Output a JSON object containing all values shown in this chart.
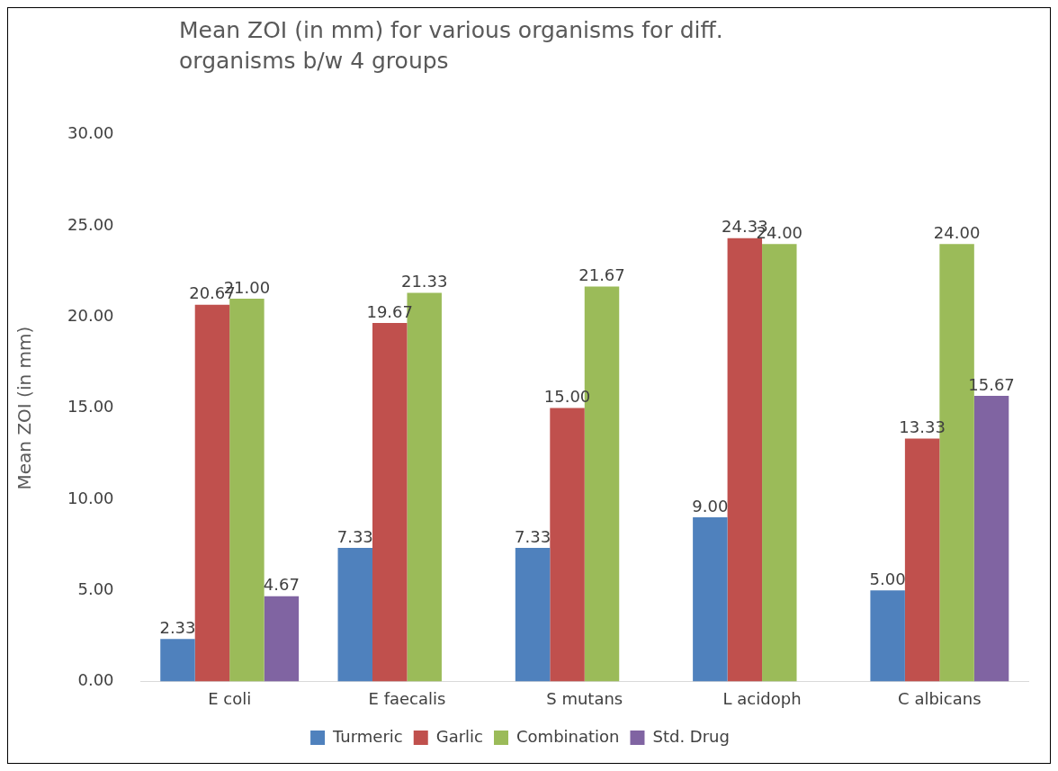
{
  "chart_data": {
    "type": "bar",
    "title": "Mean ZOI (in mm) for various organisms for diff. organisms b/w 4 groups",
    "ylabel": "Mean ZOI (in mm)",
    "categories": [
      "E coli",
      "E faecalis",
      "S mutans",
      "L acidoph",
      "C albicans"
    ],
    "series": [
      {
        "name": "Turmeric",
        "color": "#4f81bd",
        "values": [
          2.33,
          7.33,
          7.33,
          9.0,
          5.0
        ],
        "value_labels": [
          "2.33",
          "7.33",
          "7.33",
          "9.00",
          "5.00"
        ]
      },
      {
        "name": "Garlic",
        "color": "#c0504d",
        "values": [
          20.67,
          19.67,
          15.0,
          24.33,
          13.33
        ],
        "value_labels": [
          "20.67",
          "19.67",
          "15.00",
          "24.33",
          "13.33"
        ]
      },
      {
        "name": "Combination",
        "color": "#9bbb59",
        "values": [
          21.0,
          21.33,
          21.67,
          24.0,
          24.0
        ],
        "value_labels": [
          "21.00",
          "21.33",
          "21.67",
          "24.00",
          "24.00"
        ]
      },
      {
        "name": "Std. Drug",
        "color": "#8064a2",
        "values": [
          4.67,
          null,
          null,
          null,
          15.67
        ],
        "value_labels": [
          "4.67",
          null,
          null,
          null,
          "15.67"
        ]
      }
    ],
    "ylim": [
      0,
      30
    ],
    "yticks": [
      {
        "value": 0,
        "label": "0.00"
      },
      {
        "value": 5,
        "label": "5.00"
      },
      {
        "value": 10,
        "label": "10.00"
      },
      {
        "value": 15,
        "label": "15.00"
      },
      {
        "value": 20,
        "label": "20.00"
      },
      {
        "value": 25,
        "label": "25.00"
      },
      {
        "value": 30,
        "label": "30.00"
      }
    ],
    "grid": false,
    "legend": "bottom"
  }
}
